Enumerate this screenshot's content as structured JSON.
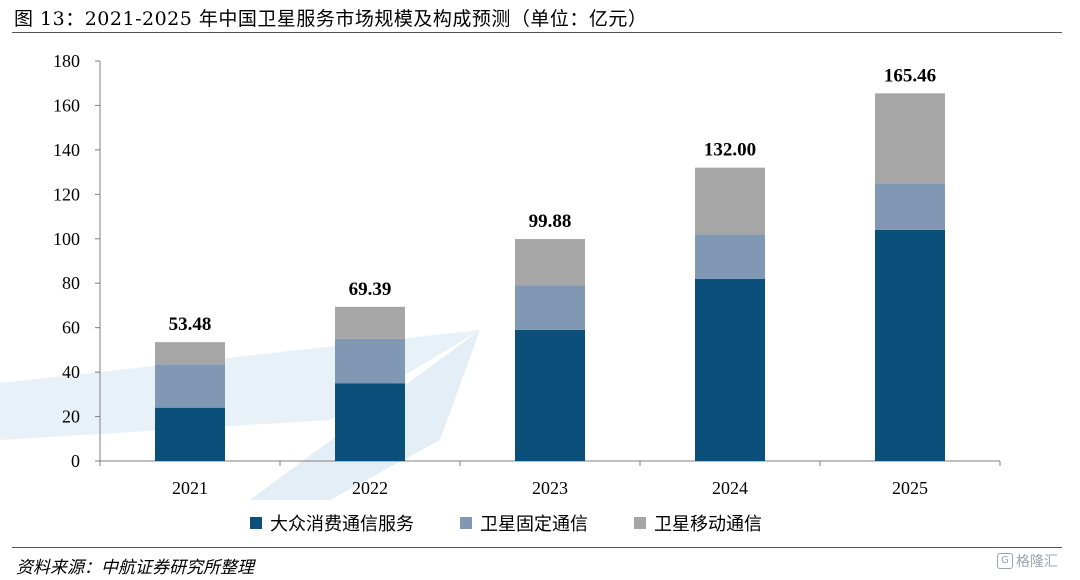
{
  "header": {
    "title": "图 13：2021-2025 年中国卫星服务市场规模及构成预测（单位：亿元）"
  },
  "footer": {
    "source": "资料来源：中航证券研究所整理",
    "watermark": "格隆汇"
  },
  "chart_data": {
    "type": "bar",
    "stacked": true,
    "categories": [
      "2021",
      "2022",
      "2023",
      "2024",
      "2025"
    ],
    "series": [
      {
        "name": "大众消费通信服务",
        "color": "#0b4f7b",
        "values": [
          24,
          35,
          59,
          82,
          104
        ]
      },
      {
        "name": "卫星固定通信",
        "color": "#8098b3",
        "values": [
          19.5,
          20,
          20,
          20,
          21
        ]
      },
      {
        "name": "卫星移动通信",
        "color": "#a6a6a6",
        "values": [
          9.98,
          14.39,
          20.88,
          30.0,
          40.46
        ]
      }
    ],
    "totals": [
      "53.48",
      "69.39",
      "99.88",
      "132.00",
      "165.46"
    ],
    "ylim": [
      0,
      180
    ],
    "yticks": [
      "0",
      "20",
      "40",
      "60",
      "80",
      "100",
      "120",
      "140",
      "160",
      "180"
    ],
    "xlabel": "",
    "ylabel": "",
    "grid": false,
    "legend_position": "bottom"
  }
}
